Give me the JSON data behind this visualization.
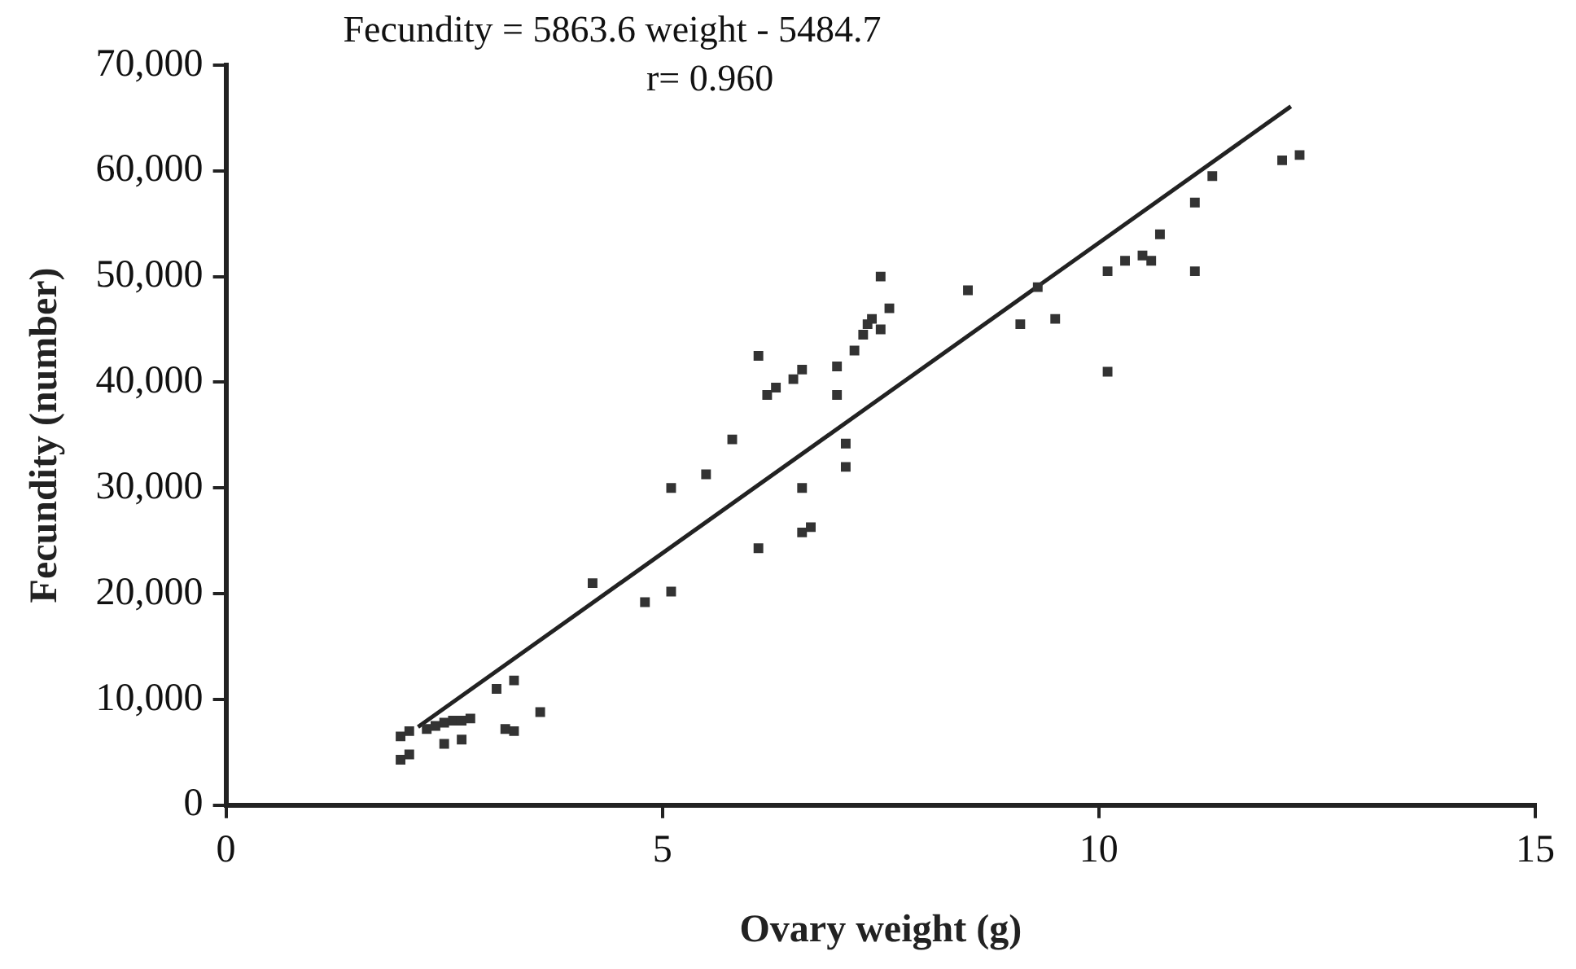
{
  "chart_data": {
    "type": "scatter",
    "xlabel": "Ovary weight (g)",
    "ylabel": "Fecundity (number)",
    "annotations": [
      "Fecundity = 5863.6 weight - 5484.7",
      "r= 0.960"
    ],
    "xlim": [
      0,
      15
    ],
    "xticks": [
      0,
      5,
      10,
      15
    ],
    "ylim": [
      0,
      70000
    ],
    "yticks": [
      0,
      {
        "value": 10000,
        "label": "10,000"
      },
      {
        "value": 20000,
        "label": "20,000"
      },
      {
        "value": 30000,
        "label": "30,000"
      },
      {
        "value": 40000,
        "label": "40,000"
      },
      {
        "value": 50000,
        "label": "50,000"
      },
      {
        "value": 60000,
        "label": "60,000"
      },
      {
        "value": 70000,
        "label": "70,000"
      }
    ],
    "grid": false,
    "legend": false,
    "series": [
      {
        "marker": "square",
        "color": "#333333",
        "x": [
          2.0,
          2.1,
          2.0,
          2.1,
          2.3,
          2.4,
          2.5,
          2.6,
          2.7,
          2.8,
          2.5,
          2.7,
          3.1,
          3.3,
          3.2,
          3.3,
          3.6,
          4.2,
          4.8,
          5.1,
          5.1,
          5.5,
          5.8,
          6.1,
          6.1,
          6.2,
          6.3,
          6.5,
          6.6,
          6.6,
          6.6,
          6.7,
          7.0,
          7.0,
          7.1,
          7.1,
          7.2,
          7.3,
          7.35,
          7.4,
          7.5,
          7.5,
          7.6,
          8.5,
          9.1,
          9.3,
          9.5,
          10.1,
          10.1,
          10.3,
          10.5,
          10.6,
          10.7,
          11.1,
          11.1,
          11.3,
          12.1,
          12.3
        ],
        "values": [
          6500,
          7000,
          4300,
          4800,
          7200,
          7500,
          7800,
          8000,
          8000,
          8200,
          5800,
          6200,
          11000,
          11800,
          7200,
          7000,
          8800,
          21000,
          19200,
          20200,
          30000,
          31300,
          34600,
          42500,
          24300,
          38800,
          39500,
          40300,
          41200,
          30000,
          25800,
          26300,
          41500,
          38800,
          34200,
          32000,
          43000,
          44500,
          45500,
          46000,
          45000,
          50000,
          47000,
          48700,
          45500,
          49000,
          46000,
          50500,
          41000,
          51500,
          52000,
          51500,
          54000,
          50500,
          57000,
          59500,
          61000,
          61500
        ]
      },
      {
        "type": "line",
        "marker": "none",
        "color": "#222222",
        "x": [
          2.2,
          12.2
        ],
        "values": [
          7400,
          66100
        ]
      }
    ]
  }
}
